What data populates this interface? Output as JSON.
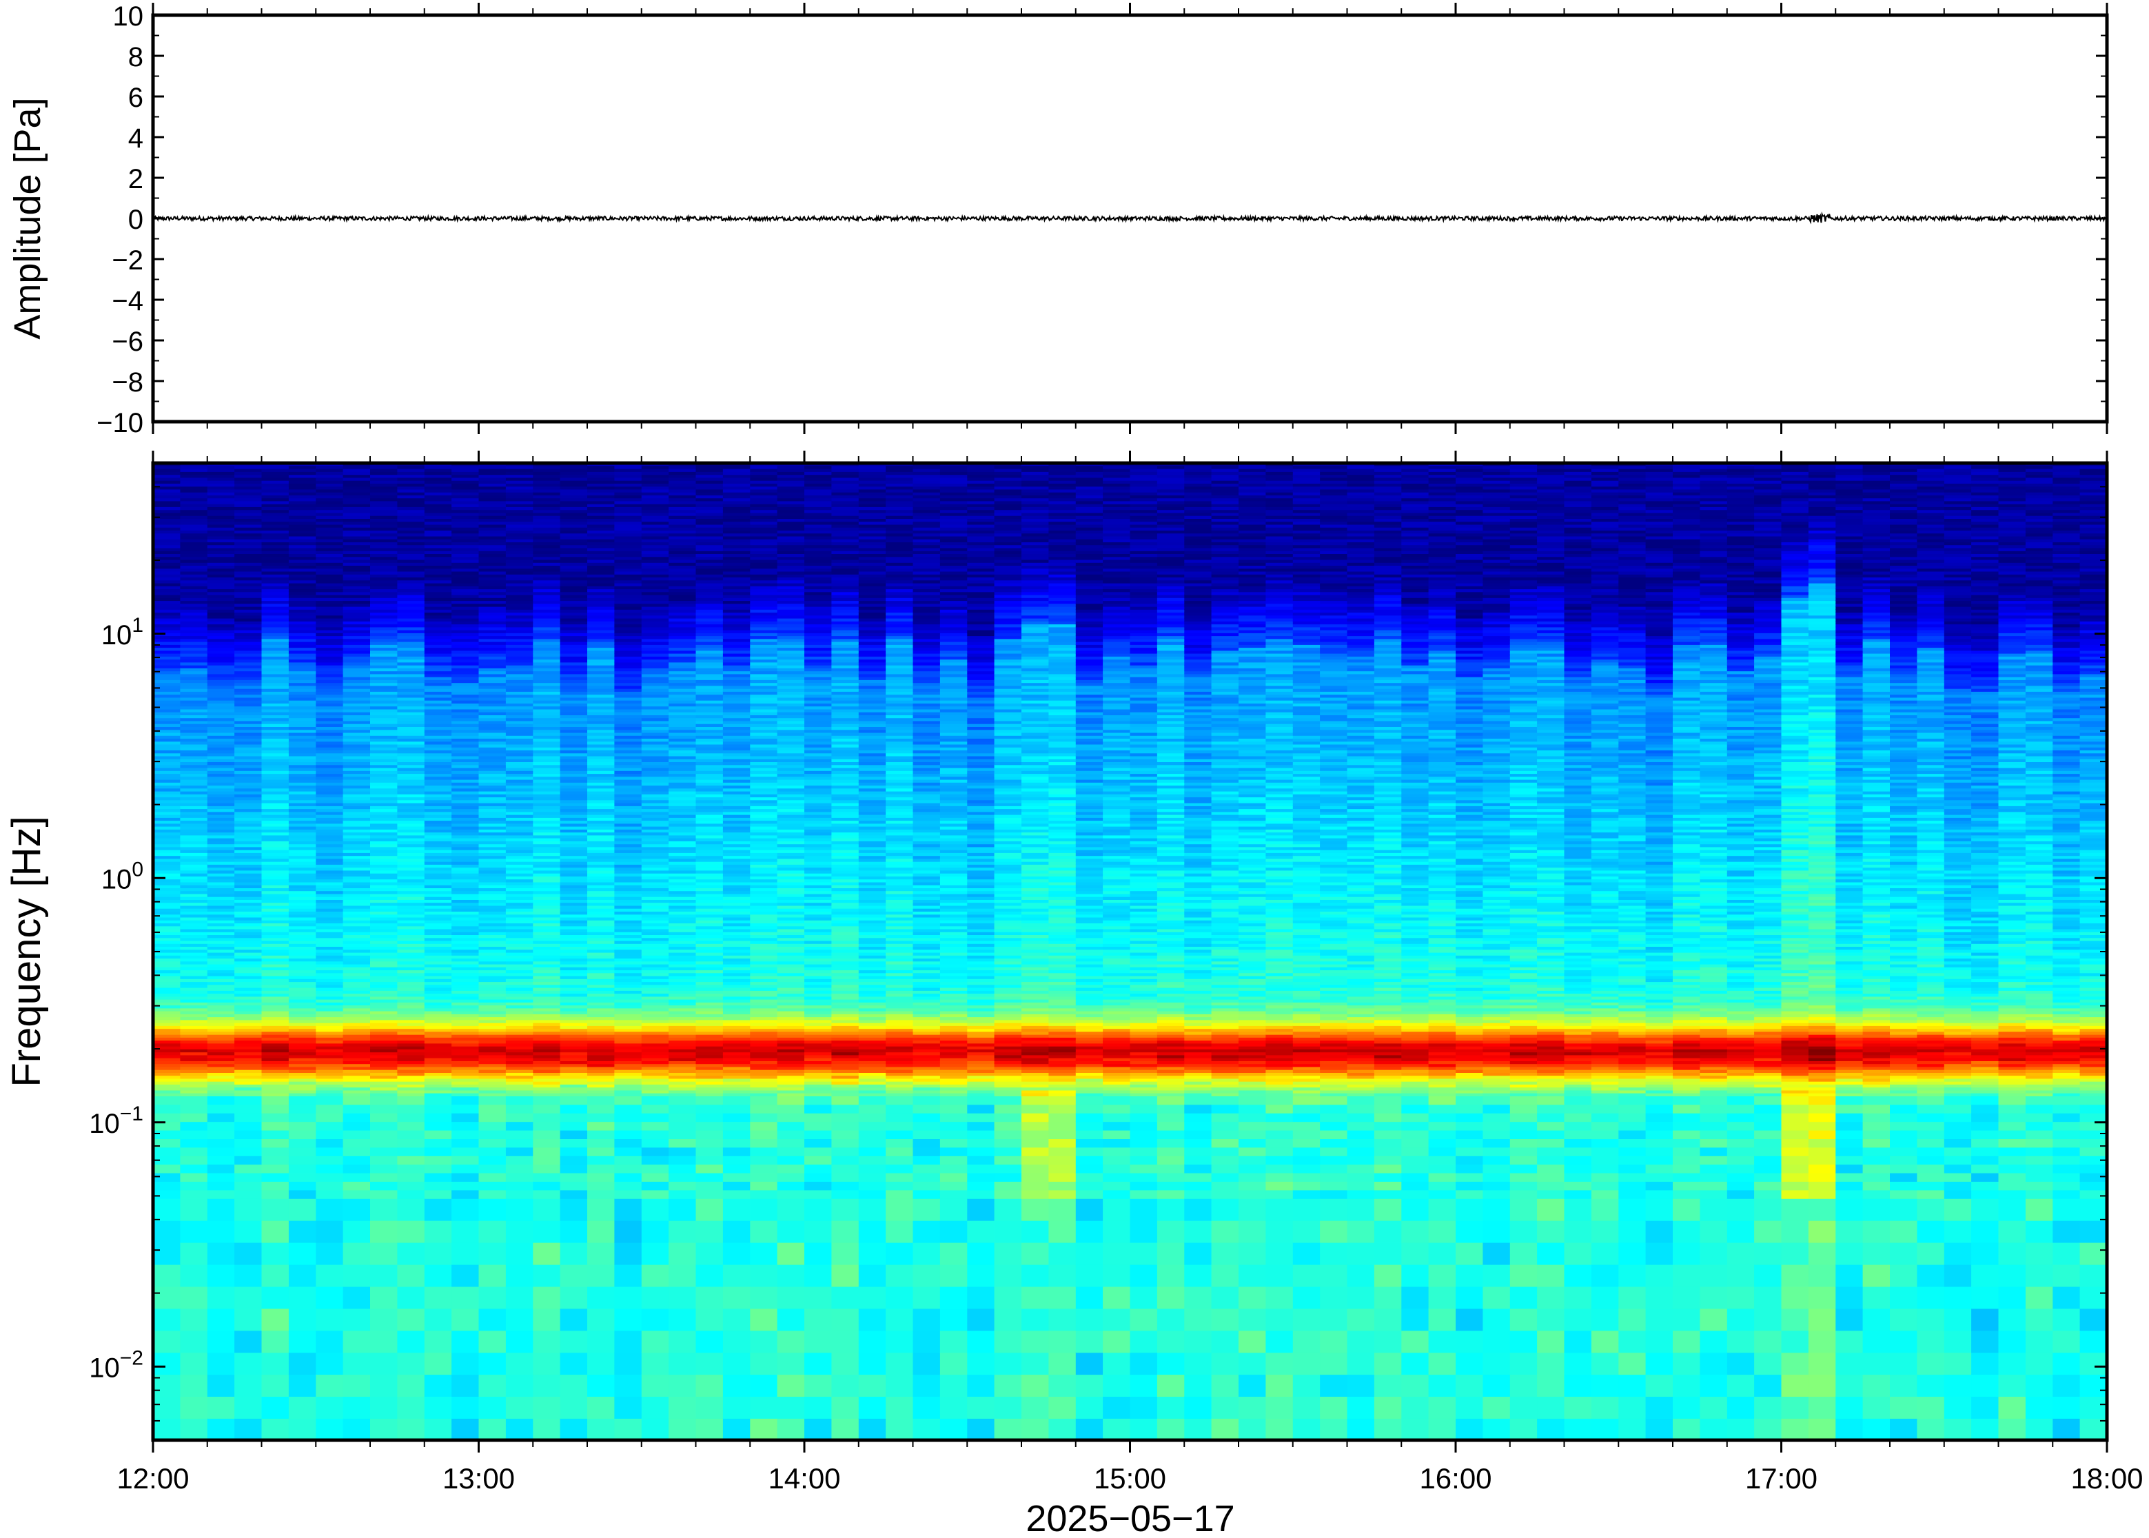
{
  "chart_data": [
    {
      "type": "line",
      "panel": "waveform",
      "ylabel": "Amplitude [Pa]",
      "ylim": [
        -10,
        10
      ],
      "y_ticks": [
        10,
        8,
        6,
        4,
        2,
        0,
        -2,
        -4,
        -6,
        -8,
        -10
      ],
      "y_tick_labels": [
        "10",
        "8",
        "6",
        "4",
        "2",
        "0",
        "−2",
        "−4",
        "−6",
        "−8",
        "−10"
      ],
      "xlim": [
        "12:00",
        "18:00"
      ],
      "baseline": 0,
      "noise_amplitude": 0.1,
      "line_color": "#000000",
      "grid": false
    },
    {
      "type": "heatmap",
      "panel": "spectrogram",
      "ylabel": "Frequency [Hz]",
      "y_scale": "log",
      "ylim": [
        0.005,
        50
      ],
      "y_tick_labels": [
        {
          "base": "10",
          "exp": "1",
          "value": 10
        },
        {
          "base": "10",
          "exp": "0",
          "value": 1
        },
        {
          "base": "10",
          "exp": "−1",
          "value": 0.1
        },
        {
          "base": "10",
          "exp": "−2",
          "value": 0.01
        }
      ],
      "x_tick_labels": [
        "12:00",
        "13:00",
        "14:00",
        "15:00",
        "16:00",
        "17:00",
        "18:00"
      ],
      "xlabel": "2025−05−17",
      "colormap": "jet",
      "colors": {
        "low": "#0a0a7a",
        "mid": "#40d8f0",
        "high": "#f46a2a"
      },
      "microseism_band_hz": [
        0.15,
        0.25
      ],
      "broadband_events": [
        "14:45",
        "17:05"
      ],
      "grid": false
    }
  ]
}
